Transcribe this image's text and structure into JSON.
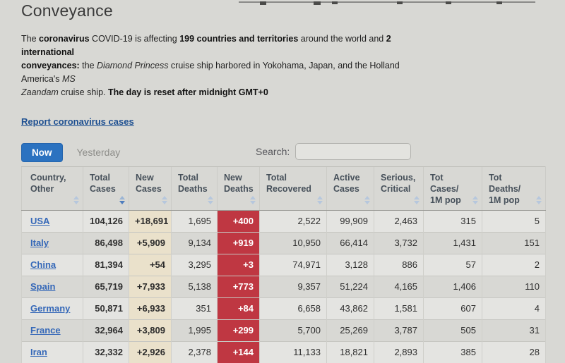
{
  "page": {
    "title_line": "Conveyance",
    "intro_segments": [
      {
        "t": "The "
      },
      {
        "t": "coronavirus",
        "b": true
      },
      {
        "t": " COVID-19 is affecting "
      },
      {
        "t": "199 countries and territories",
        "b": true
      },
      {
        "t": " around the world and "
      },
      {
        "t": "2 international",
        "b": true
      },
      {
        "br": true
      },
      {
        "t": "conveyances:",
        "b": true
      },
      {
        "t": " the "
      },
      {
        "t": "Diamond Princess",
        "i": true
      },
      {
        "t": " cruise ship harbored in Yokohama, Japan, and the Holland America's "
      },
      {
        "t": "MS",
        "i": true
      },
      {
        "br": true
      },
      {
        "t": "Zaandam",
        "i": true
      },
      {
        "t": " cruise ship. "
      },
      {
        "t": "The day is reset after midnight GMT+0",
        "b": true
      }
    ],
    "report_link": "Report coronavirus cases",
    "toolbar": {
      "now": "Now",
      "yesterday": "Yesterday",
      "search_label": "Search:",
      "search_value": ""
    },
    "colors": {
      "accent_blue": "#2b72c0",
      "country_link_blue": "#3568b8",
      "report_link_blue": "#1d4f91",
      "new_cases_highlight": "#eae1cb",
      "new_deaths_red": "#bf3742",
      "new_deaths_text": "#ffffff",
      "header_text": "#46505a"
    },
    "table": {
      "columns": [
        {
          "key": "country",
          "label_line1": "Country,",
          "label_line2": "Other",
          "sort": "none"
        },
        {
          "key": "total_cases",
          "label_line1": "Total",
          "label_line2": "Cases",
          "sort": "desc"
        },
        {
          "key": "new_cases",
          "label_line1": "New",
          "label_line2": "Cases",
          "sort": "none"
        },
        {
          "key": "total_deaths",
          "label_line1": "Total",
          "label_line2": "Deaths",
          "sort": "none"
        },
        {
          "key": "new_deaths",
          "label_line1": "New",
          "label_line2": "Deaths",
          "sort": "none"
        },
        {
          "key": "total_recovered",
          "label_line1": "Total",
          "label_line2": "Recovered",
          "sort": "none"
        },
        {
          "key": "active_cases",
          "label_line1": "Active",
          "label_line2": "Cases",
          "sort": "none"
        },
        {
          "key": "serious_critical",
          "label_line1": "Serious,",
          "label_line2": "Critical",
          "sort": "none"
        },
        {
          "key": "tot_cases_1m",
          "label_line1": "Tot Cases/",
          "label_line2": "1M pop",
          "sort": "none"
        },
        {
          "key": "tot_deaths_1m",
          "label_line1": "Tot Deaths/",
          "label_line2": "1M pop",
          "sort": "none"
        }
      ],
      "rows": [
        {
          "country": "USA",
          "total_cases": "104,126",
          "new_cases": "+18,691",
          "total_deaths": "1,695",
          "new_deaths": "+400",
          "total_recovered": "2,522",
          "active_cases": "99,909",
          "serious_critical": "2,463",
          "tot_cases_1m": "315",
          "tot_deaths_1m": "5"
        },
        {
          "country": "Italy",
          "total_cases": "86,498",
          "new_cases": "+5,909",
          "total_deaths": "9,134",
          "new_deaths": "+919",
          "total_recovered": "10,950",
          "active_cases": "66,414",
          "serious_critical": "3,732",
          "tot_cases_1m": "1,431",
          "tot_deaths_1m": "151"
        },
        {
          "country": "China",
          "total_cases": "81,394",
          "new_cases": "+54",
          "total_deaths": "3,295",
          "new_deaths": "+3",
          "total_recovered": "74,971",
          "active_cases": "3,128",
          "serious_critical": "886",
          "tot_cases_1m": "57",
          "tot_deaths_1m": "2"
        },
        {
          "country": "Spain",
          "total_cases": "65,719",
          "new_cases": "+7,933",
          "total_deaths": "5,138",
          "new_deaths": "+773",
          "total_recovered": "9,357",
          "active_cases": "51,224",
          "serious_critical": "4,165",
          "tot_cases_1m": "1,406",
          "tot_deaths_1m": "110"
        },
        {
          "country": "Germany",
          "total_cases": "50,871",
          "new_cases": "+6,933",
          "total_deaths": "351",
          "new_deaths": "+84",
          "total_recovered": "6,658",
          "active_cases": "43,862",
          "serious_critical": "1,581",
          "tot_cases_1m": "607",
          "tot_deaths_1m": "4"
        },
        {
          "country": "France",
          "total_cases": "32,964",
          "new_cases": "+3,809",
          "total_deaths": "1,995",
          "new_deaths": "+299",
          "total_recovered": "5,700",
          "active_cases": "25,269",
          "serious_critical": "3,787",
          "tot_cases_1m": "505",
          "tot_deaths_1m": "31"
        },
        {
          "country": "Iran",
          "total_cases": "32,332",
          "new_cases": "+2,926",
          "total_deaths": "2,378",
          "new_deaths": "+144",
          "total_recovered": "11,133",
          "active_cases": "18,821",
          "serious_critical": "2,893",
          "tot_cases_1m": "385",
          "tot_deaths_1m": "28"
        }
      ]
    }
  }
}
